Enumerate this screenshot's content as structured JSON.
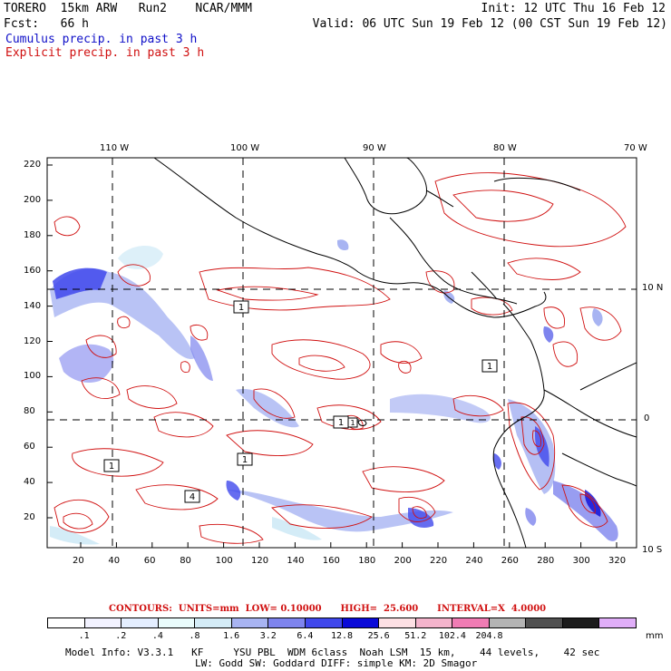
{
  "header": {
    "title_line": "TORERO  15km ARW   Run2    NCAR/MMM",
    "init": "Init: 12 UTC Thu 16 Feb 12",
    "fcst": "Fcst:   66 h",
    "valid": "Valid: 06 UTC Sun 19 Feb 12 (00 CST Sun 19 Feb 12)",
    "cumulus": "Cumulus precip. in past 3 h",
    "explicit": "Explicit precip. in past 3 h"
  },
  "axes": {
    "top_lon": [
      "110 W",
      "100 W",
      "90 W",
      "80 W",
      "70 W"
    ],
    "right_lat": [
      "10 N",
      "0",
      "10 S"
    ],
    "y_ticks": [
      "220",
      "200",
      "180",
      "160",
      "140",
      "120",
      "100",
      "80",
      "60",
      "40",
      "20"
    ],
    "x_ticks": [
      "20",
      "40",
      "60",
      "80",
      "100",
      "120",
      "140",
      "160",
      "180",
      "200",
      "220",
      "240",
      "260",
      "280",
      "300",
      "320"
    ]
  },
  "contour_boxes": [
    "1",
    "1",
    "1",
    "1",
    "4",
    "1",
    "1"
  ],
  "contours": {
    "text": "CONTOURS:  UNITS=mm  LOW= 0.10000      HIGH=  25.600      INTERVAL=X  4.0000"
  },
  "legend": {
    "colors": [
      "#ffffff",
      "#f2f2ff",
      "#e4eeff",
      "#eafcfc",
      "#d4ecf7",
      "#a8b4f2",
      "#7e84ee",
      "#4048ec",
      "#0a0ad8",
      "#fde0e4",
      "#f4b4cc",
      "#f07cb4",
      "#b4b4b4",
      "#505050",
      "#1c1c1c",
      "#e0aef8"
    ],
    "labels": [
      ".1",
      ".2",
      ".4",
      ".8",
      "1.6",
      "3.2",
      "6.4",
      "12.8",
      "25.6",
      "51.2",
      "102.4",
      "204.8"
    ],
    "unit": "mm"
  },
  "model_info": {
    "line1": "Model Info: V3.3.1   KF     YSU PBL  WDM 6class  Noah LSM  15 km,    44 levels,    42 sec",
    "line2": "LW: Godd SW: Goddard DIFF: simple KM: 2D Smagor"
  }
}
